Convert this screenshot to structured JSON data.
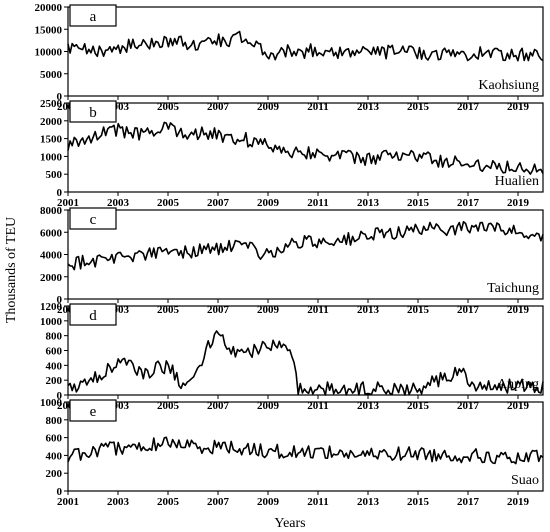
{
  "figure": {
    "y_axis_label": "Thousands of TEU",
    "x_axis_label": "Years",
    "x_ticks": [
      "2001",
      "2003",
      "2005",
      "2007",
      "2009",
      "2011",
      "2013",
      "2015",
      "2017",
      "2019"
    ]
  },
  "chart_data": [
    {
      "type": "line",
      "panel_letter": "a",
      "series_label": "Kaohsiung",
      "x_range": [
        2001,
        2020
      ],
      "ylim": [
        0,
        20000
      ],
      "y_ticks": [
        "0",
        "5000",
        "10000",
        "15000",
        "20000"
      ],
      "x_years": [
        2001,
        2002,
        2003,
        2004,
        2005,
        2006,
        2007,
        2008,
        2009,
        2010,
        2011,
        2012,
        2013,
        2014,
        2015,
        2016,
        2017,
        2018,
        2019,
        2020
      ],
      "values": [
        10500,
        10000,
        11000,
        11500,
        12500,
        11500,
        12500,
        13000,
        9500,
        10000,
        10200,
        10000,
        9800,
        10000,
        9800,
        9500,
        9500,
        9700,
        9200,
        9000
      ]
    },
    {
      "type": "line",
      "panel_letter": "b",
      "series_label": "Hualien",
      "x_range": [
        2001,
        2020
      ],
      "ylim": [
        0,
        2500
      ],
      "y_ticks": [
        "0",
        "500",
        "1000",
        "1500",
        "2000",
        "2500"
      ],
      "x_years": [
        2001,
        2002,
        2003,
        2004,
        2005,
        2006,
        2007,
        2008,
        2009,
        2010,
        2011,
        2012,
        2013,
        2014,
        2015,
        2016,
        2017,
        2018,
        2019,
        2020
      ],
      "values": [
        1300,
        1600,
        1750,
        1600,
        1800,
        1650,
        1600,
        1500,
        1300,
        1150,
        1100,
        1000,
        900,
        1050,
        1000,
        850,
        800,
        750,
        700,
        700
      ]
    },
    {
      "type": "line",
      "panel_letter": "c",
      "series_label": "Taichung",
      "x_range": [
        2001,
        2020
      ],
      "ylim": [
        0,
        8000
      ],
      "y_ticks": [
        "0",
        "2000",
        "4000",
        "6000",
        "8000"
      ],
      "x_years": [
        2001,
        2002,
        2003,
        2004,
        2005,
        2006,
        2007,
        2008,
        2009,
        2010,
        2011,
        2012,
        2013,
        2014,
        2015,
        2016,
        2017,
        2018,
        2019,
        2020
      ],
      "values": [
        3200,
        3500,
        3800,
        4000,
        4200,
        4300,
        4600,
        4700,
        4000,
        5000,
        5200,
        5300,
        5600,
        6000,
        6200,
        6300,
        6500,
        6400,
        6000,
        5800
      ]
    },
    {
      "type": "line",
      "panel_letter": "d",
      "series_label": "Anping",
      "x_range": [
        2001,
        2020
      ],
      "ylim": [
        0,
        1200
      ],
      "y_ticks": [
        "0",
        "200",
        "400",
        "600",
        "800",
        "1000",
        "1200"
      ],
      "x_years": [
        2001,
        2002,
        2003,
        2004,
        2005,
        2005.5,
        2006,
        2006.9,
        2007.5,
        2008,
        2009,
        2009.9,
        2010.2,
        2011,
        2013,
        2015,
        2016.8,
        2017.2,
        2019,
        2020
      ],
      "values": [
        80,
        200,
        450,
        300,
        400,
        180,
        200,
        850,
        600,
        550,
        650,
        700,
        100,
        80,
        80,
        80,
        350,
        80,
        130,
        120
      ]
    },
    {
      "type": "line",
      "panel_letter": "e",
      "series_label": "Suao",
      "x_range": [
        2001,
        2020
      ],
      "ylim": [
        0,
        1000
      ],
      "y_ticks": [
        "0",
        "200",
        "400",
        "600",
        "800",
        "1000"
      ],
      "x_years": [
        2001,
        2002,
        2003,
        2004,
        2005,
        2006,
        2007,
        2008,
        2009,
        2010,
        2011,
        2012,
        2013,
        2014,
        2015,
        2016,
        2017,
        2018,
        2019,
        2020
      ],
      "values": [
        400,
        450,
        480,
        500,
        550,
        500,
        500,
        480,
        450,
        430,
        450,
        420,
        400,
        420,
        420,
        400,
        400,
        380,
        350,
        400
      ]
    }
  ]
}
